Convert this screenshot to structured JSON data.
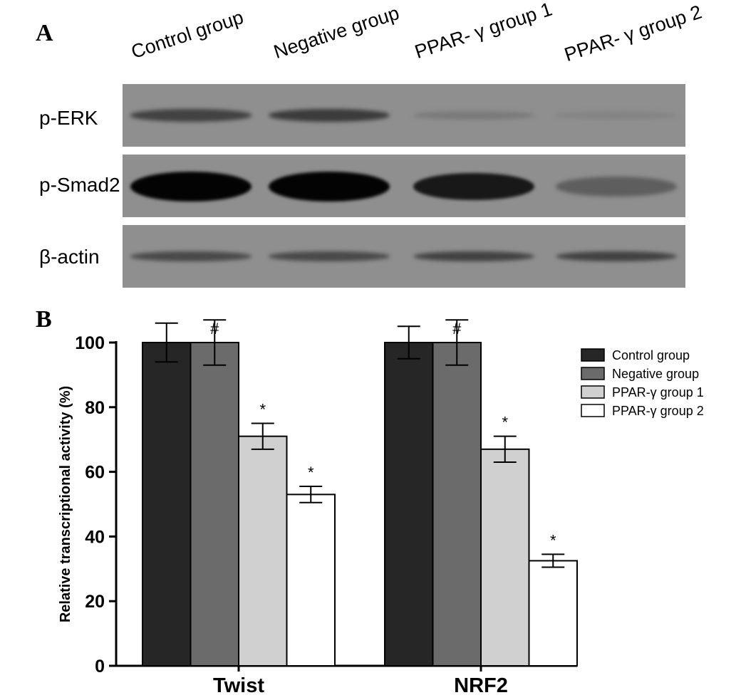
{
  "panel_a": {
    "letter": "A",
    "lanes": [
      "Control group",
      "Negative group",
      "PPAR- γ  group 1",
      "PPAR- γ  group 2"
    ],
    "rows": [
      {
        "label": "p-ERK",
        "band_intensity": [
          0.55,
          0.6,
          0.15,
          0.08
        ]
      },
      {
        "label": "p-Smad2",
        "band_intensity": [
          1.0,
          1.0,
          0.85,
          0.35
        ]
      },
      {
        "label": "β-actin",
        "band_intensity": [
          0.5,
          0.5,
          0.55,
          0.55
        ]
      }
    ]
  },
  "panel_b": {
    "letter": "B"
  },
  "chart_data": {
    "type": "bar",
    "categories": [
      "Twist",
      "NRF2"
    ],
    "ylabel": "Relative transcriptional activity (%)",
    "ylim": [
      0,
      100
    ],
    "yticks": [
      0,
      20,
      40,
      60,
      80,
      100
    ],
    "grid": false,
    "legend_position": "right",
    "series": [
      {
        "name": "Control group",
        "color": "#262626",
        "values": [
          100,
          100
        ],
        "errors": [
          6,
          5
        ],
        "marks": [
          "",
          ""
        ]
      },
      {
        "name": "Negative group",
        "color": "#6b6b6b",
        "values": [
          100,
          100
        ],
        "errors": [
          7,
          7
        ],
        "marks": [
          "#",
          "#"
        ]
      },
      {
        "name": "PPAR-γ  group 1",
        "color": "#d0d0d0",
        "values": [
          71,
          67
        ],
        "errors": [
          4,
          4
        ],
        "marks": [
          "*",
          "*"
        ]
      },
      {
        "name": "PPAR-γ  group 2",
        "color": "#ffffff",
        "values": [
          53,
          32.5
        ],
        "errors": [
          2.5,
          2
        ],
        "marks": [
          "*",
          "*"
        ]
      }
    ]
  }
}
